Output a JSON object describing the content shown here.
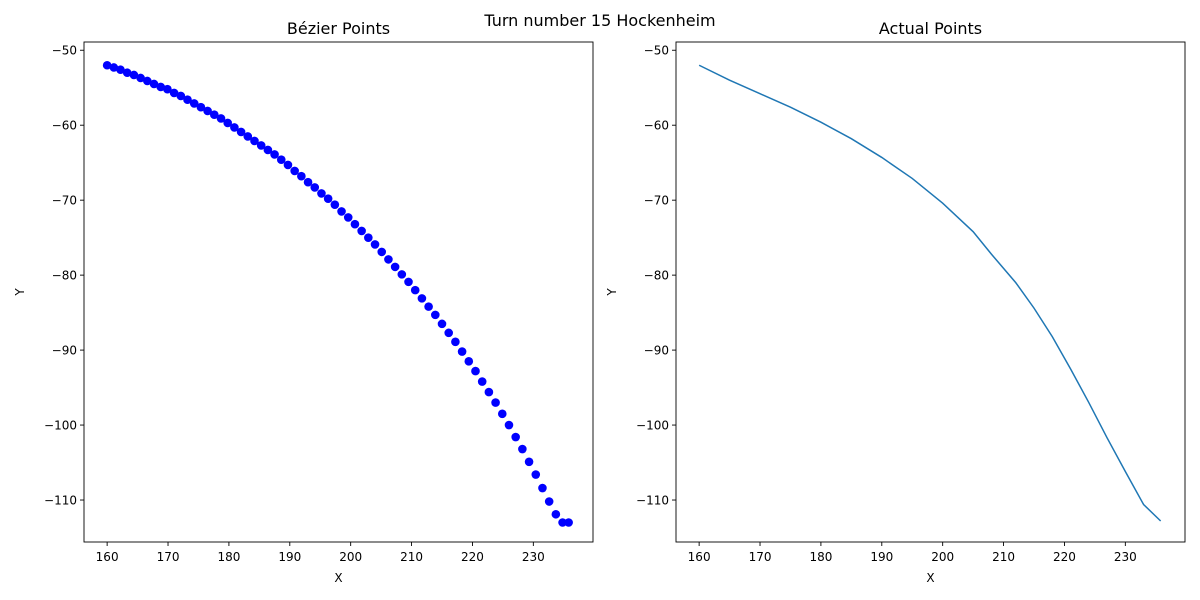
{
  "figure": {
    "suptitle": "Turn number 15 Hockenheim"
  },
  "chart_data": [
    {
      "type": "scatter",
      "title": "Bézier Points",
      "xlabel": "X",
      "ylabel": "Y",
      "xlim": [
        156.2,
        239.8
      ],
      "ylim": [
        -115.6,
        -48.9
      ],
      "xticks": [
        160,
        170,
        180,
        190,
        200,
        210,
        220,
        230
      ],
      "yticks": [
        -110,
        -100,
        -90,
        -80,
        -70,
        -60,
        -50
      ],
      "grid": false,
      "legend": "none",
      "marker": "circle",
      "color": "#0000ff",
      "series": [
        {
          "points": [
            [
              160.0,
              -52.0
            ],
            [
              161.1,
              -52.3
            ],
            [
              162.2,
              -52.6
            ],
            [
              163.3,
              -53.0
            ],
            [
              164.4,
              -53.3
            ],
            [
              165.5,
              -53.7
            ],
            [
              166.6,
              -54.1
            ],
            [
              167.7,
              -54.5
            ],
            [
              168.8,
              -54.9
            ],
            [
              169.9,
              -55.2
            ],
            [
              171.0,
              -55.7
            ],
            [
              172.1,
              -56.1
            ],
            [
              173.2,
              -56.6
            ],
            [
              174.3,
              -57.1
            ],
            [
              175.4,
              -57.6
            ],
            [
              176.5,
              -58.1
            ],
            [
              177.6,
              -58.6
            ],
            [
              178.7,
              -59.1
            ],
            [
              179.8,
              -59.7
            ],
            [
              180.9,
              -60.3
            ],
            [
              182.0,
              -60.9
            ],
            [
              183.1,
              -61.5
            ],
            [
              184.2,
              -62.1
            ],
            [
              185.3,
              -62.7
            ],
            [
              186.4,
              -63.3
            ],
            [
              187.5,
              -63.9
            ],
            [
              188.6,
              -64.6
            ],
            [
              189.7,
              -65.3
            ],
            [
              190.8,
              -66.1
            ],
            [
              191.9,
              -66.8
            ],
            [
              193.0,
              -67.6
            ],
            [
              194.1,
              -68.3
            ],
            [
              195.2,
              -69.1
            ],
            [
              196.3,
              -69.8
            ],
            [
              197.4,
              -70.6
            ],
            [
              198.5,
              -71.5
            ],
            [
              199.6,
              -72.3
            ],
            [
              200.7,
              -73.2
            ],
            [
              201.8,
              -74.1
            ],
            [
              202.9,
              -75.0
            ],
            [
              204.0,
              -75.9
            ],
            [
              205.1,
              -76.9
            ],
            [
              206.2,
              -77.9
            ],
            [
              207.3,
              -78.9
            ],
            [
              208.4,
              -79.9
            ],
            [
              209.5,
              -80.9
            ],
            [
              210.6,
              -82.0
            ],
            [
              211.7,
              -83.1
            ],
            [
              212.8,
              -84.2
            ],
            [
              213.9,
              -85.3
            ],
            [
              215.0,
              -86.5
            ],
            [
              216.1,
              -87.7
            ],
            [
              217.2,
              -88.9
            ],
            [
              218.3,
              -90.2
            ],
            [
              219.4,
              -91.5
            ],
            [
              220.5,
              -92.8
            ],
            [
              221.6,
              -94.2
            ],
            [
              222.7,
              -95.6
            ],
            [
              223.8,
              -97.0
            ],
            [
              224.9,
              -98.5
            ],
            [
              226.0,
              -100.0
            ],
            [
              227.1,
              -101.6
            ],
            [
              228.2,
              -103.2
            ],
            [
              229.3,
              -104.9
            ],
            [
              230.4,
              -106.6
            ],
            [
              231.5,
              -108.4
            ],
            [
              232.6,
              -110.2
            ],
            [
              233.7,
              -111.9
            ],
            [
              234.8,
              -113.0
            ],
            [
              235.8,
              -113.0
            ]
          ]
        }
      ]
    },
    {
      "type": "line",
      "title": "Actual Points",
      "xlabel": "X",
      "ylabel": "Y",
      "xlim": [
        156.2,
        239.8
      ],
      "ylim": [
        -115.6,
        -48.9
      ],
      "xticks": [
        160,
        170,
        180,
        190,
        200,
        210,
        220,
        230
      ],
      "yticks": [
        -110,
        -100,
        -90,
        -80,
        -70,
        -60,
        -50
      ],
      "grid": false,
      "legend": "none",
      "color": "#1f77b4",
      "series": [
        {
          "points": [
            [
              160.0,
              -52.0
            ],
            [
              165.0,
              -54.0
            ],
            [
              170.0,
              -55.8
            ],
            [
              175.0,
              -57.6
            ],
            [
              180.0,
              -59.6
            ],
            [
              185.0,
              -61.8
            ],
            [
              190.0,
              -64.3
            ],
            [
              195.0,
              -67.1
            ],
            [
              200.0,
              -70.4
            ],
            [
              205.0,
              -74.2
            ],
            [
              208.0,
              -77.2
            ],
            [
              212.0,
              -81.0
            ],
            [
              215.0,
              -84.4
            ],
            [
              218.0,
              -88.2
            ],
            [
              221.0,
              -92.5
            ],
            [
              224.0,
              -97.0
            ],
            [
              227.0,
              -101.7
            ],
            [
              230.0,
              -106.2
            ],
            [
              233.0,
              -110.6
            ],
            [
              235.8,
              -112.8
            ]
          ]
        }
      ]
    }
  ]
}
